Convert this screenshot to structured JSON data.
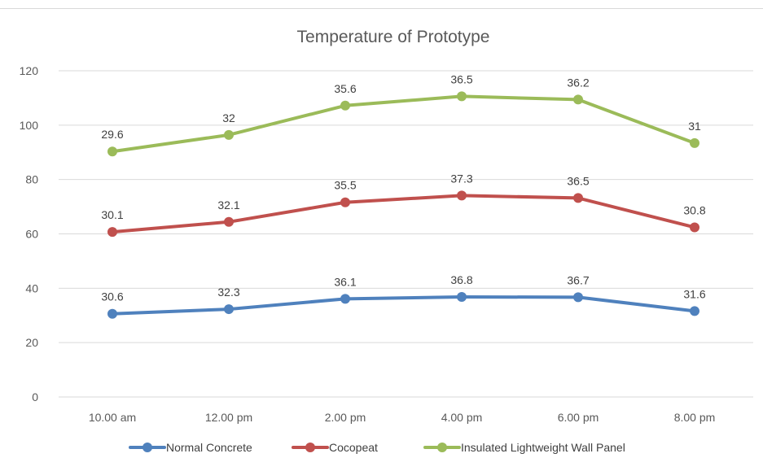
{
  "chart_data": {
    "type": "line",
    "title": "Temperature of Prototype",
    "xlabel": "",
    "ylabel": "",
    "categories": [
      "10.00 am",
      "12.00 pm",
      "2.00 pm",
      "4.00 pm",
      "6.00 pm",
      "8.00 pm"
    ],
    "ylim": [
      0,
      120
    ],
    "yticks": [
      0,
      20,
      40,
      60,
      80,
      100,
      120
    ],
    "stacked": true,
    "grid": true,
    "legend_position": "bottom",
    "series": [
      {
        "name": "Normal Concrete",
        "color": "#4f81bd",
        "values": [
          30.6,
          32.3,
          36.1,
          36.8,
          36.7,
          31.6
        ]
      },
      {
        "name": "Cocopeat",
        "color": "#c0504d",
        "values": [
          30.1,
          32.1,
          35.5,
          37.3,
          36.5,
          30.8
        ]
      },
      {
        "name": "Insulated Lightweight Wall Panel",
        "color": "#9bbb59",
        "values": [
          29.6,
          32,
          35.6,
          36.5,
          36.2,
          31
        ]
      }
    ]
  }
}
